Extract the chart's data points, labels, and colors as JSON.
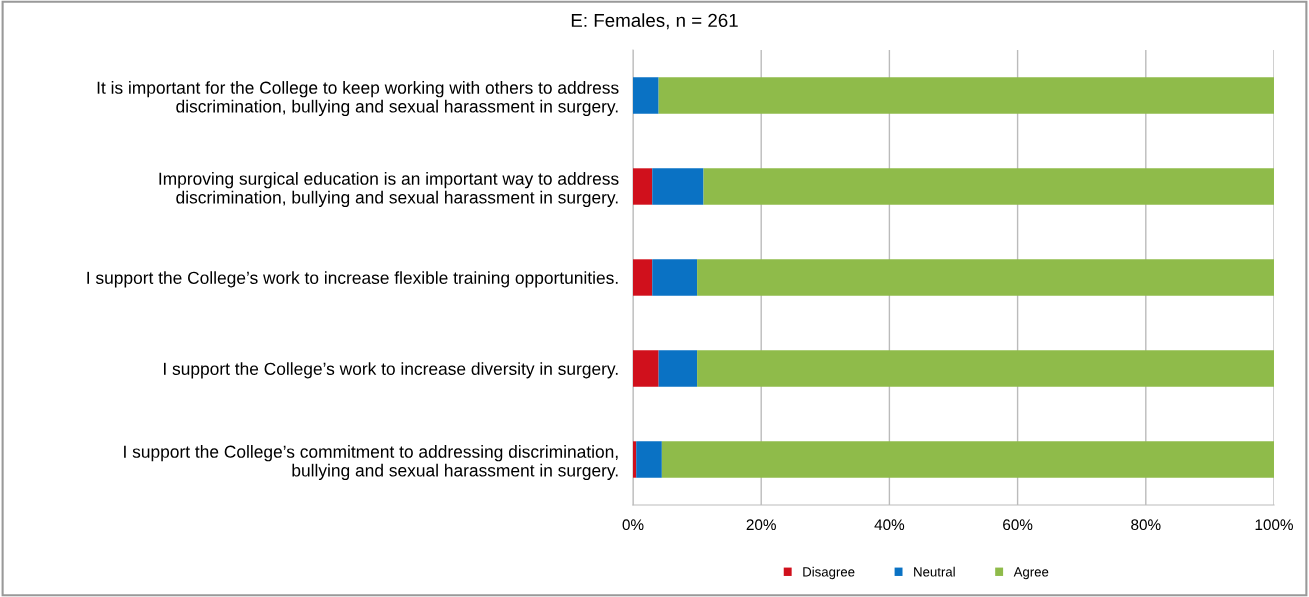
{
  "chart_data": {
    "type": "bar",
    "orientation": "horizontal",
    "stacked": true,
    "title": "E: Females, n = 261",
    "categories": [
      "It is important for the College to keep working with others to address\ndiscrimination, bullying and sexual harassment in surgery.",
      "Improving surgical education is an important way to address\ndiscrimination, bullying and sexual harassment in surgery.",
      "I support the College’s work to increase flexible training opportunities.",
      "I support the College’s work to increase diversity in surgery.",
      "I support the College’s commitment to addressing discrimination,\nbullying and sexual harassment in surgery."
    ],
    "series": [
      {
        "name": "Disagree",
        "color": "#d0101c",
        "values": [
          0,
          3,
          3,
          4,
          0.5
        ]
      },
      {
        "name": "Neutral",
        "color": "#0a72c4",
        "values": [
          4,
          8,
          7,
          6,
          4
        ]
      },
      {
        "name": "Agree",
        "color": "#8fbb4a",
        "values": [
          96,
          89,
          90,
          90,
          95.5
        ]
      }
    ],
    "xlim": [
      0,
      100
    ],
    "xticks": [
      {
        "value": 0,
        "label": "0%"
      },
      {
        "value": 20,
        "label": "20%"
      },
      {
        "value": 40,
        "label": "40%"
      },
      {
        "value": 60,
        "label": "60%"
      },
      {
        "value": 80,
        "label": "80%"
      },
      {
        "value": 100,
        "label": "100%"
      }
    ],
    "grid": "x",
    "legend": "bottom"
  }
}
